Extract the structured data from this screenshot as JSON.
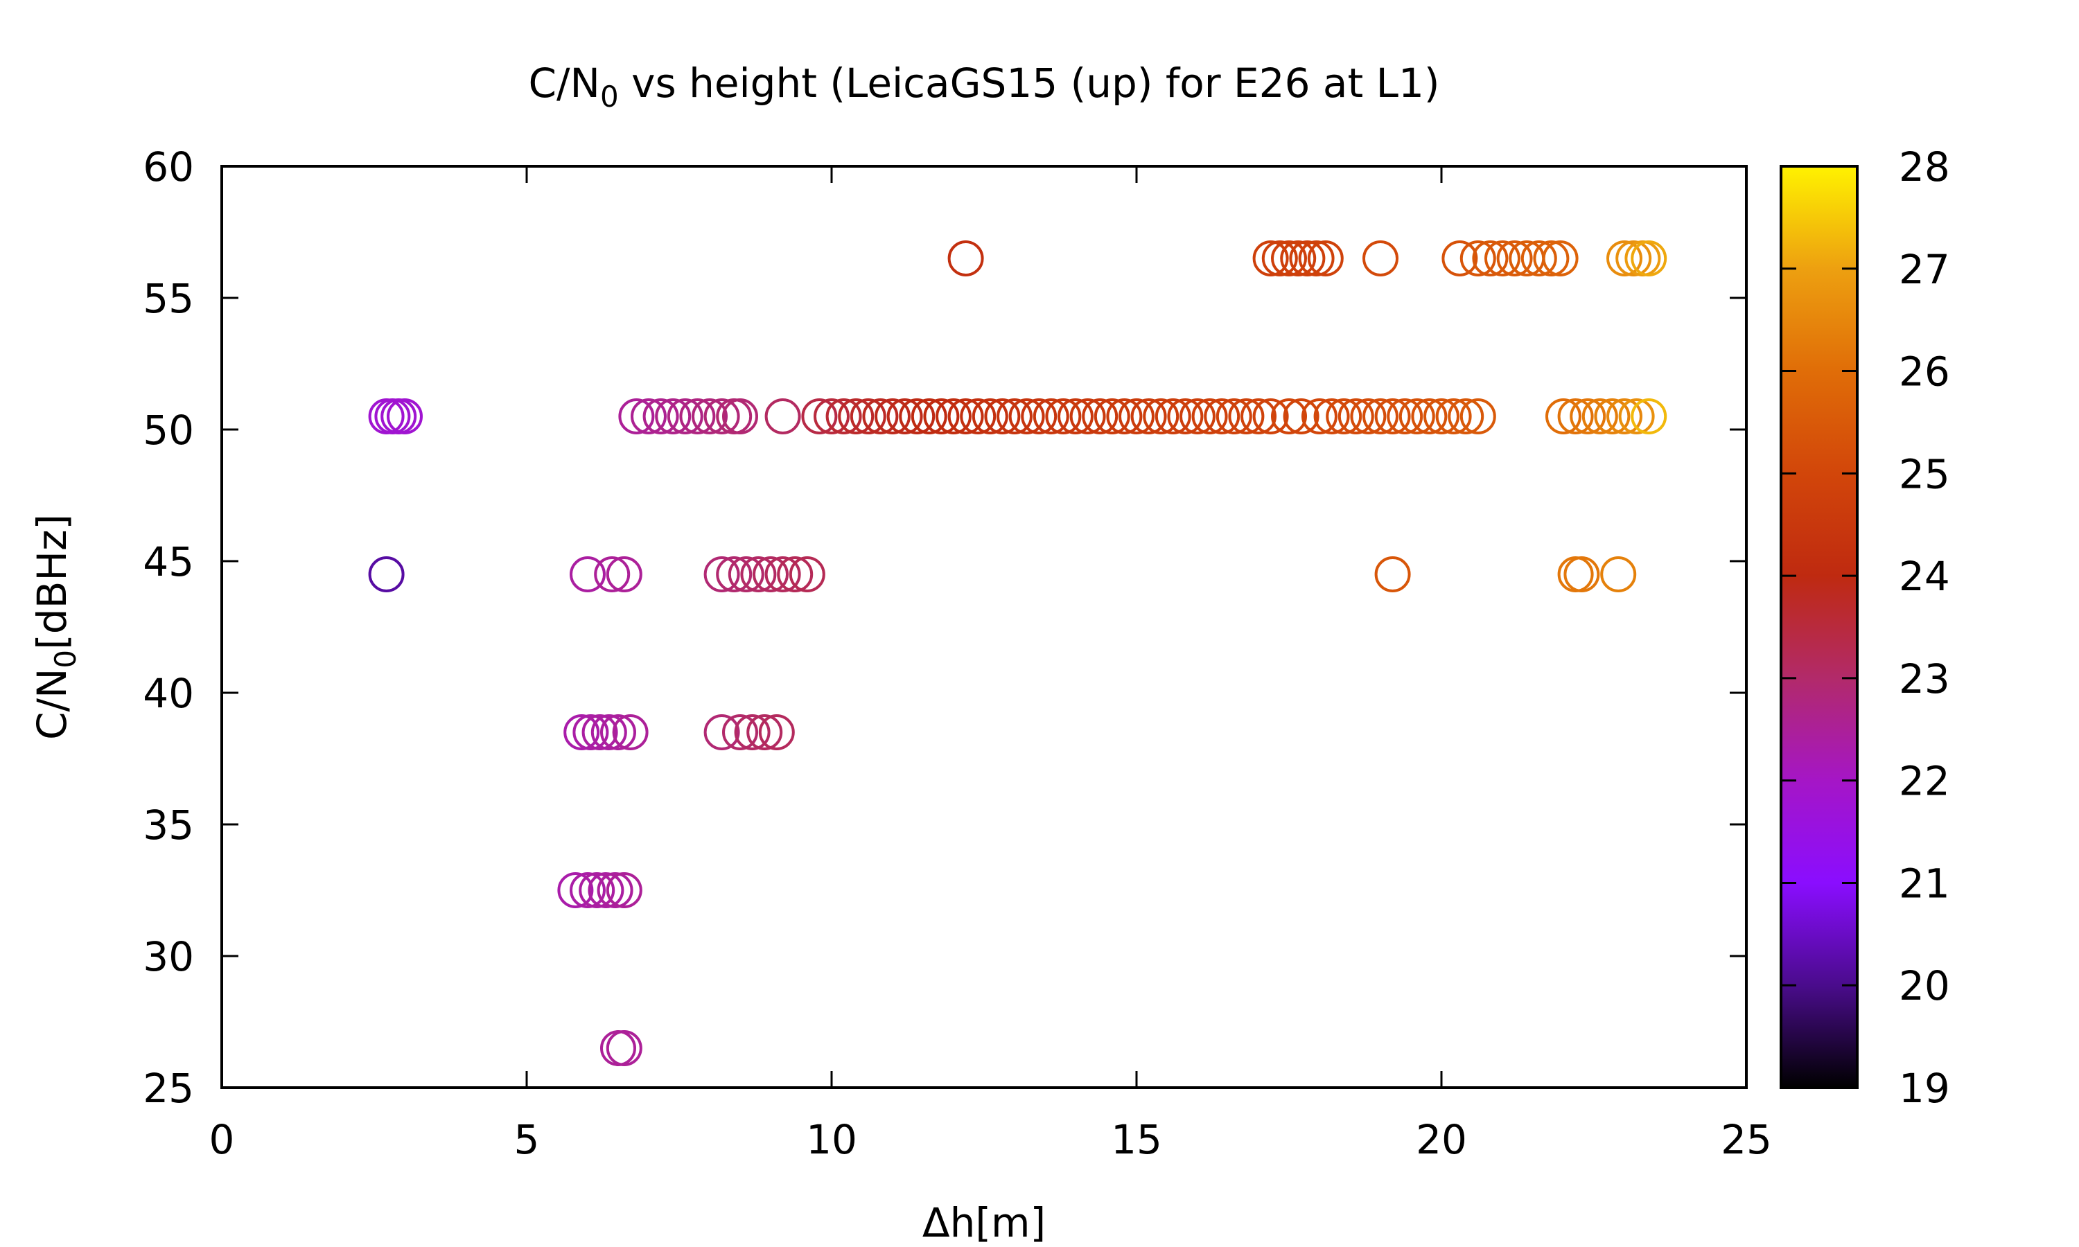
{
  "chart_data": {
    "type": "scatter",
    "title_main": "C/N",
    "title_sub": "0",
    "title_rest": " vs height (LeicaGS15 (up) for E26 at L1)",
    "xlabel": "Δh[m]",
    "ylabel_main": "C/N",
    "ylabel_sub": "0",
    "ylabel_rest": "[dBHz]",
    "xlim": [
      0,
      25
    ],
    "ylim": [
      25,
      60
    ],
    "x_ticks": [
      "0",
      "5",
      "10",
      "15",
      "20",
      "25"
    ],
    "y_ticks": [
      "25",
      "30",
      "35",
      "40",
      "45",
      "50",
      "55",
      "60"
    ],
    "colorbar": {
      "range": [
        19,
        28
      ],
      "ticks": [
        "19",
        "20",
        "21",
        "22",
        "23",
        "24",
        "25",
        "26",
        "27",
        "28"
      ],
      "palette": [
        "#000000",
        "#4a0c8c",
        "#8a0dff",
        "#a516c6",
        "#b22a6a",
        "#bf2a10",
        "#d2460a",
        "#e06d08",
        "#eda010",
        "#fff200"
      ]
    },
    "marker": "open-circle",
    "series": [
      {
        "y": 56.5,
        "points": [
          {
            "x": 12.2,
            "c": 24.2
          },
          {
            "x": 17.2,
            "c": 24.8
          },
          {
            "x": 17.35,
            "c": 24.8
          },
          {
            "x": 17.5,
            "c": 24.8
          },
          {
            "x": 17.65,
            "c": 24.8
          },
          {
            "x": 17.8,
            "c": 24.8
          },
          {
            "x": 17.95,
            "c": 24.85
          },
          {
            "x": 18.1,
            "c": 24.85
          },
          {
            "x": 19.0,
            "c": 25.1
          },
          {
            "x": 20.3,
            "c": 25.3
          },
          {
            "x": 20.6,
            "c": 25.4
          },
          {
            "x": 20.8,
            "c": 25.45
          },
          {
            "x": 21.0,
            "c": 25.5
          },
          {
            "x": 21.2,
            "c": 25.55
          },
          {
            "x": 21.4,
            "c": 25.6
          },
          {
            "x": 21.6,
            "c": 25.65
          },
          {
            "x": 21.8,
            "c": 25.7
          },
          {
            "x": 21.95,
            "c": 25.75
          },
          {
            "x": 23.0,
            "c": 26.6
          },
          {
            "x": 23.15,
            "c": 26.7
          },
          {
            "x": 23.3,
            "c": 26.9
          },
          {
            "x": 23.4,
            "c": 27.1
          }
        ]
      },
      {
        "y": 50.5,
        "points": [
          {
            "x": 2.7,
            "c": 21.8
          },
          {
            "x": 2.8,
            "c": 21.8
          },
          {
            "x": 2.9,
            "c": 21.8
          },
          {
            "x": 3.0,
            "c": 21.8
          },
          {
            "x": 6.8,
            "c": 22.5
          },
          {
            "x": 7.0,
            "c": 22.55
          },
          {
            "x": 7.2,
            "c": 22.6
          },
          {
            "x": 7.4,
            "c": 22.65
          },
          {
            "x": 7.6,
            "c": 22.7
          },
          {
            "x": 7.8,
            "c": 22.75
          },
          {
            "x": 8.0,
            "c": 22.8
          },
          {
            "x": 8.2,
            "c": 22.85
          },
          {
            "x": 8.4,
            "c": 22.9
          },
          {
            "x": 8.5,
            "c": 22.9
          },
          {
            "x": 9.2,
            "c": 23.1
          },
          {
            "x": 9.8,
            "c": 23.4
          },
          {
            "x": 10.0,
            "c": 23.5
          },
          {
            "x": 10.2,
            "c": 23.6
          },
          {
            "x": 10.4,
            "c": 23.7
          },
          {
            "x": 10.6,
            "c": 23.75
          },
          {
            "x": 10.8,
            "c": 23.8
          },
          {
            "x": 11.0,
            "c": 23.85
          },
          {
            "x": 11.2,
            "c": 23.9
          },
          {
            "x": 11.4,
            "c": 23.95
          },
          {
            "x": 11.6,
            "c": 24.0
          },
          {
            "x": 11.8,
            "c": 24.05
          },
          {
            "x": 12.0,
            "c": 24.1
          },
          {
            "x": 12.2,
            "c": 24.15
          },
          {
            "x": 12.4,
            "c": 24.2
          },
          {
            "x": 12.6,
            "c": 24.25
          },
          {
            "x": 12.8,
            "c": 24.3
          },
          {
            "x": 13.0,
            "c": 24.35
          },
          {
            "x": 13.2,
            "c": 24.4
          },
          {
            "x": 13.4,
            "c": 24.4
          },
          {
            "x": 13.6,
            "c": 24.45
          },
          {
            "x": 13.8,
            "c": 24.5
          },
          {
            "x": 14.0,
            "c": 24.5
          },
          {
            "x": 14.2,
            "c": 24.55
          },
          {
            "x": 14.4,
            "c": 24.55
          },
          {
            "x": 14.6,
            "c": 24.6
          },
          {
            "x": 14.8,
            "c": 24.6
          },
          {
            "x": 15.0,
            "c": 24.65
          },
          {
            "x": 15.2,
            "c": 24.65
          },
          {
            "x": 15.4,
            "c": 24.7
          },
          {
            "x": 15.6,
            "c": 24.7
          },
          {
            "x": 15.8,
            "c": 24.75
          },
          {
            "x": 16.0,
            "c": 24.75
          },
          {
            "x": 16.2,
            "c": 24.8
          },
          {
            "x": 16.4,
            "c": 24.8
          },
          {
            "x": 16.6,
            "c": 24.85
          },
          {
            "x": 16.8,
            "c": 24.85
          },
          {
            "x": 17.0,
            "c": 24.9
          },
          {
            "x": 17.2,
            "c": 24.9
          },
          {
            "x": 17.5,
            "c": 24.95
          },
          {
            "x": 17.7,
            "c": 24.95
          },
          {
            "x": 18.0,
            "c": 25.0
          },
          {
            "x": 18.2,
            "c": 25.05
          },
          {
            "x": 18.4,
            "c": 25.1
          },
          {
            "x": 18.6,
            "c": 25.1
          },
          {
            "x": 18.8,
            "c": 25.15
          },
          {
            "x": 19.0,
            "c": 25.2
          },
          {
            "x": 19.2,
            "c": 25.2
          },
          {
            "x": 19.4,
            "c": 25.25
          },
          {
            "x": 19.6,
            "c": 25.3
          },
          {
            "x": 19.8,
            "c": 25.3
          },
          {
            "x": 20.0,
            "c": 25.35
          },
          {
            "x": 20.2,
            "c": 25.4
          },
          {
            "x": 20.4,
            "c": 25.45
          },
          {
            "x": 20.6,
            "c": 25.5
          },
          {
            "x": 22.0,
            "c": 26.0
          },
          {
            "x": 22.2,
            "c": 26.1
          },
          {
            "x": 22.4,
            "c": 26.2
          },
          {
            "x": 22.6,
            "c": 26.3
          },
          {
            "x": 22.8,
            "c": 26.4
          },
          {
            "x": 23.0,
            "c": 26.5
          },
          {
            "x": 23.2,
            "c": 26.7
          },
          {
            "x": 23.4,
            "c": 27.3
          }
        ]
      },
      {
        "y": 44.5,
        "points": [
          {
            "x": 2.7,
            "c": 20.2
          },
          {
            "x": 6.0,
            "c": 22.4
          },
          {
            "x": 6.4,
            "c": 22.5
          },
          {
            "x": 6.6,
            "c": 22.5
          },
          {
            "x": 8.2,
            "c": 22.9
          },
          {
            "x": 8.4,
            "c": 22.95
          },
          {
            "x": 8.6,
            "c": 23.0
          },
          {
            "x": 8.8,
            "c": 23.05
          },
          {
            "x": 9.0,
            "c": 23.1
          },
          {
            "x": 9.2,
            "c": 23.15
          },
          {
            "x": 9.4,
            "c": 23.2
          },
          {
            "x": 9.6,
            "c": 23.25
          },
          {
            "x": 19.2,
            "c": 25.4
          },
          {
            "x": 22.2,
            "c": 26.2
          },
          {
            "x": 22.3,
            "c": 26.2
          },
          {
            "x": 22.9,
            "c": 26.4
          }
        ]
      },
      {
        "y": 38.5,
        "points": [
          {
            "x": 5.9,
            "c": 22.3
          },
          {
            "x": 6.05,
            "c": 22.35
          },
          {
            "x": 6.2,
            "c": 22.4
          },
          {
            "x": 6.35,
            "c": 22.4
          },
          {
            "x": 6.5,
            "c": 22.45
          },
          {
            "x": 6.7,
            "c": 22.5
          },
          {
            "x": 8.2,
            "c": 22.9
          },
          {
            "x": 8.5,
            "c": 23.0
          },
          {
            "x": 8.7,
            "c": 23.05
          },
          {
            "x": 8.9,
            "c": 23.1
          },
          {
            "x": 9.1,
            "c": 23.15
          }
        ]
      },
      {
        "y": 32.5,
        "points": [
          {
            "x": 5.8,
            "c": 22.3
          },
          {
            "x": 6.0,
            "c": 22.35
          },
          {
            "x": 6.15,
            "c": 22.4
          },
          {
            "x": 6.3,
            "c": 22.4
          },
          {
            "x": 6.45,
            "c": 22.45
          },
          {
            "x": 6.6,
            "c": 22.5
          }
        ]
      },
      {
        "y": 26.5,
        "points": [
          {
            "x": 6.5,
            "c": 22.5
          },
          {
            "x": 6.6,
            "c": 22.5
          }
        ]
      }
    ]
  }
}
